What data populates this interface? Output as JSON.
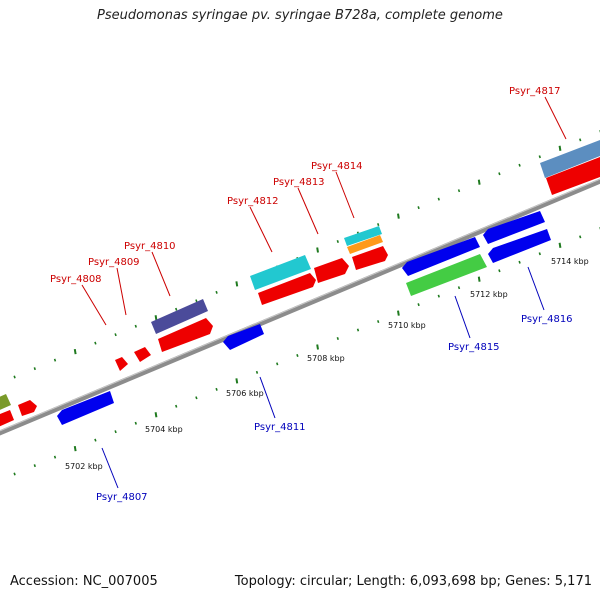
{
  "title": "Pseudomonas syringae pv. syringae B728a, complete genome",
  "footer": {
    "accession": "Accession: NC_007005",
    "info": "Topology: circular; Length: 6,093,698 bp; Genes: 5,171"
  },
  "colors": {
    "forward_label": "#cc0000",
    "reverse_label": "#0000bb",
    "tick": "#1f7a1f",
    "backbone": "#7a7a7a"
  },
  "scale_labels": [
    "5702 kbp",
    "5704 kbp",
    "5706 kbp",
    "5708 kbp",
    "5710 kbp",
    "5712 kbp",
    "5714 kbp"
  ],
  "forward_genes": [
    "Psyr_4808",
    "Psyr_4809",
    "Psyr_4810",
    "Psyr_4812",
    "Psyr_4813",
    "Psyr_4814",
    "Psyr_4817"
  ],
  "reverse_genes": [
    "Psyr_4807",
    "Psyr_4811",
    "Psyr_4815",
    "Psyr_4816"
  ]
}
